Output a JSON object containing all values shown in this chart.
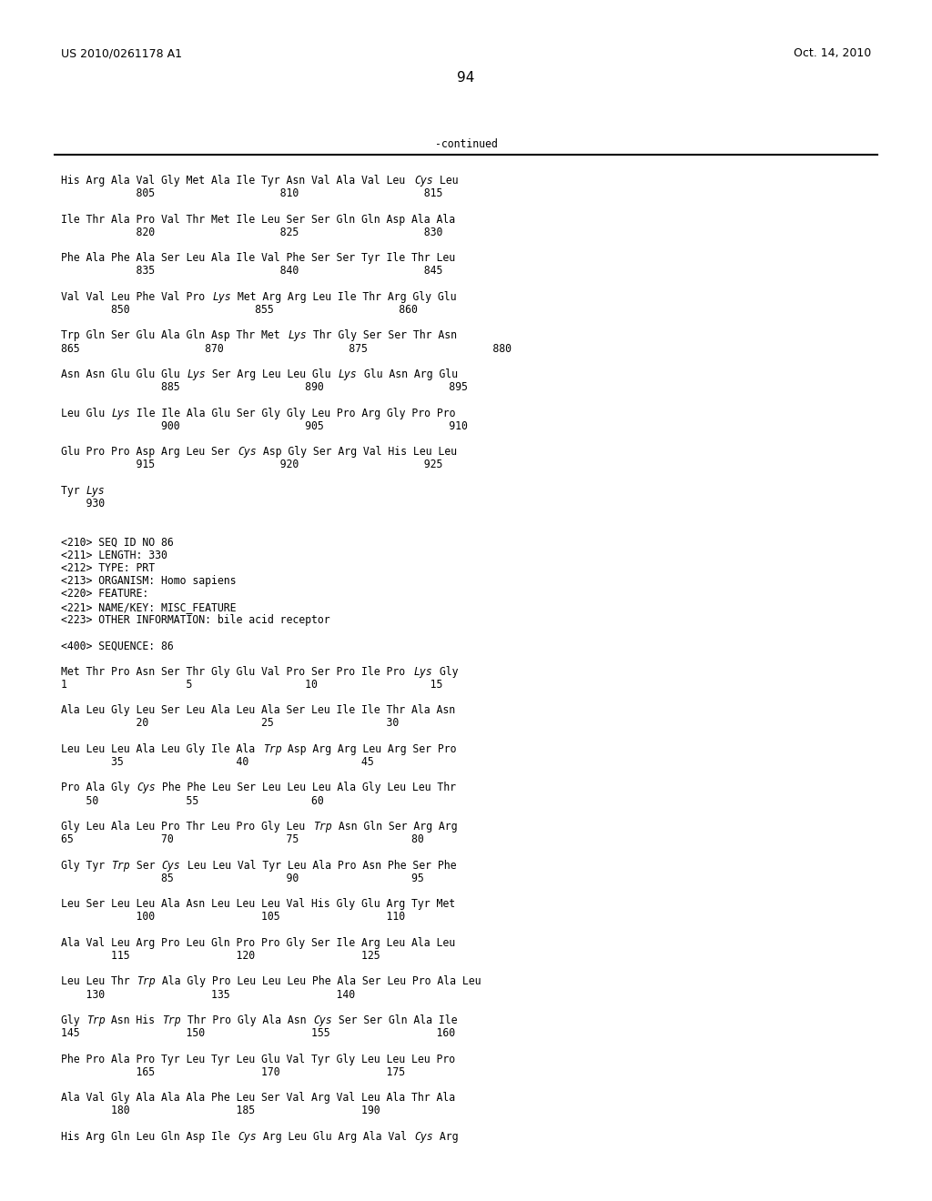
{
  "header_left": "US 2010/0261178 A1",
  "header_right": "Oct. 14, 2010",
  "page_number": "94",
  "continued_label": "-continued",
  "background_color": "#ffffff",
  "text_color": "#000000",
  "body_lines": [
    [
      "His Arg Ala Val Gly Met Ala Ile Tyr Asn Val Ala Val Leu ",
      "Cys",
      " Leu"
    ],
    [
      "            805                    810                    815"
    ],
    [
      ""
    ],
    [
      "Ile Thr Ala Pro Val Thr Met Ile Leu Ser Ser Gln Gln Asp Ala Ala"
    ],
    [
      "            820                    825                    830"
    ],
    [
      ""
    ],
    [
      "Phe Ala Phe Ala Ser Leu Ala Ile Val Phe Ser Ser Tyr Ile Thr Leu"
    ],
    [
      "            835                    840                    845"
    ],
    [
      ""
    ],
    [
      "Val Val Leu Phe Val Pro ",
      "Lys",
      " Met Arg Arg Leu Ile Thr Arg Gly Glu"
    ],
    [
      "        850                    855                    860"
    ],
    [
      ""
    ],
    [
      "Trp Gln Ser Glu Ala Gln Asp Thr Met ",
      "Lys",
      " Thr Gly Ser Ser Thr Asn"
    ],
    [
      "865                    870                    875                    880"
    ],
    [
      ""
    ],
    [
      "Asn Asn Glu Glu Glu ",
      "Lys",
      " Ser Arg Leu Leu Glu ",
      "Lys",
      " Glu Asn Arg Glu"
    ],
    [
      "                885                    890                    895"
    ],
    [
      ""
    ],
    [
      "Leu Glu ",
      "Lys",
      " Ile Ile Ala Glu Ser Gly Gly Leu Pro Arg Gly Pro Pro"
    ],
    [
      "                900                    905                    910"
    ],
    [
      ""
    ],
    [
      "Glu Pro Pro Asp Arg Leu Ser ",
      "Cys",
      " Asp Gly Ser Arg Val His Leu Leu"
    ],
    [
      "            915                    920                    925"
    ],
    [
      ""
    ],
    [
      "Tyr ",
      "Lys"
    ],
    [
      "    930"
    ],
    [
      ""
    ],
    [
      ""
    ],
    [
      "<210> SEQ ID NO 86"
    ],
    [
      "<211> LENGTH: 330"
    ],
    [
      "<212> TYPE: PRT"
    ],
    [
      "<213> ORGANISM: Homo sapiens"
    ],
    [
      "<220> FEATURE:"
    ],
    [
      "<221> NAME/KEY: MISC_FEATURE"
    ],
    [
      "<223> OTHER INFORMATION: bile acid receptor"
    ],
    [
      ""
    ],
    [
      "<400> SEQUENCE: 86"
    ],
    [
      ""
    ],
    [
      "Met Thr Pro Asn Ser Thr Gly Glu Val Pro Ser Pro Ile Pro ",
      "Lys",
      " Gly"
    ],
    [
      "1                   5                  10                  15"
    ],
    [
      ""
    ],
    [
      "Ala Leu Gly Leu Ser Leu Ala Leu Ala Ser Leu Ile Ile Thr Ala Asn"
    ],
    [
      "            20                  25                  30"
    ],
    [
      ""
    ],
    [
      "Leu Leu Leu Ala Leu Gly Ile Ala ",
      "Trp",
      " Asp Arg Arg Leu Arg Ser Pro"
    ],
    [
      "        35                  40                  45"
    ],
    [
      ""
    ],
    [
      "Pro Ala Gly ",
      "Cys",
      " Phe Phe Leu Ser Leu Leu Leu Ala Gly Leu Leu Thr"
    ],
    [
      "    50              55                  60"
    ],
    [
      ""
    ],
    [
      "Gly Leu Ala Leu Pro Thr Leu Pro Gly Leu ",
      "Trp",
      " Asn Gln Ser Arg Arg"
    ],
    [
      "65              70                  75                  80"
    ],
    [
      ""
    ],
    [
      "Gly Tyr ",
      "Trp",
      " Ser ",
      "Cys",
      " Leu Leu Val Tyr Leu Ala Pro Asn Phe Ser Phe"
    ],
    [
      "                85                  90                  95"
    ],
    [
      ""
    ],
    [
      "Leu Ser Leu Leu Ala Asn Leu Leu Leu Val His Gly Glu Arg Tyr Met"
    ],
    [
      "            100                 105                 110"
    ],
    [
      ""
    ],
    [
      "Ala Val Leu Arg Pro Leu Gln Pro Pro Gly Ser Ile Arg Leu Ala Leu"
    ],
    [
      "        115                 120                 125"
    ],
    [
      ""
    ],
    [
      "Leu Leu Thr ",
      "Trp",
      " Ala Gly Pro Leu Leu Leu Phe Ala Ser Leu Pro Ala Leu"
    ],
    [
      "    130                 135                 140"
    ],
    [
      ""
    ],
    [
      "Gly ",
      "Trp",
      " Asn His ",
      "Trp",
      " Thr Pro Gly Ala Asn ",
      "Cys",
      " Ser Ser Gln Ala Ile"
    ],
    [
      "145                 150                 155                 160"
    ],
    [
      ""
    ],
    [
      "Phe Pro Ala Pro Tyr Leu Tyr Leu Glu Val Tyr Gly Leu Leu Leu Pro"
    ],
    [
      "            165                 170                 175"
    ],
    [
      ""
    ],
    [
      "Ala Val Gly Ala Ala Ala Phe Leu Ser Val Arg Val Leu Ala Thr Ala"
    ],
    [
      "        180                 185                 190"
    ],
    [
      ""
    ],
    [
      "His Arg Gln Leu Gln Asp Ile ",
      "Cys",
      " Arg Leu Glu Arg Ala Val ",
      "Cys",
      " Arg"
    ]
  ]
}
